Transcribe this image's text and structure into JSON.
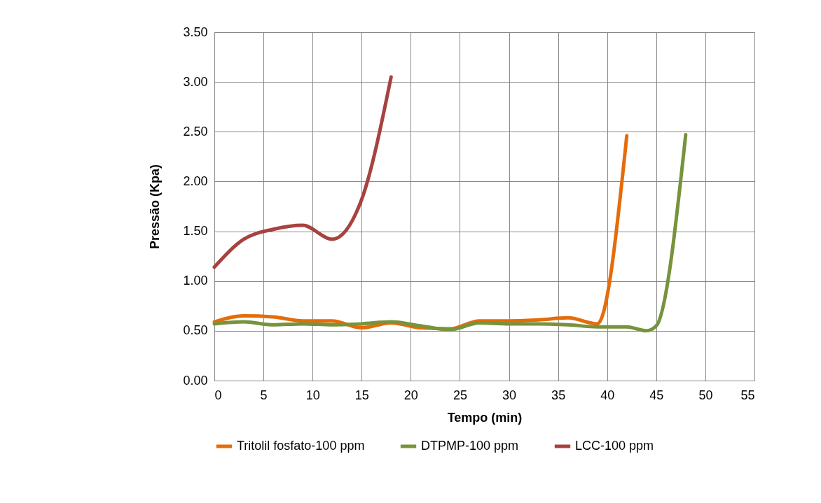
{
  "chart_data": {
    "type": "line",
    "xlabel": "Tempo (min)",
    "ylabel": "Pressão (Kpa)",
    "xlim": [
      0,
      55
    ],
    "xticks": [
      0,
      5,
      10,
      15,
      20,
      25,
      30,
      35,
      40,
      45,
      50,
      55
    ],
    "ylim": [
      0,
      3.5
    ],
    "yticks": [
      {
        "value": 0,
        "label": "0.00"
      },
      {
        "value": 0.5,
        "label": "0.50"
      },
      {
        "value": 1,
        "label": "1.00"
      },
      {
        "value": 1.5,
        "label": "1.50"
      },
      {
        "value": 2,
        "label": "2.00"
      },
      {
        "value": 2.5,
        "label": "2.50"
      },
      {
        "value": 3,
        "label": "3.00"
      },
      {
        "value": 3.5,
        "label": "3.50"
      }
    ],
    "grid": true,
    "legend": "bottom",
    "marker": "none",
    "line_style": "solid",
    "series": [
      {
        "name": "Tritolil fosfato-100 ppm",
        "color": "#e46c0a",
        "x": [
          0,
          3,
          6,
          9,
          12,
          15,
          18,
          21,
          24,
          27,
          30,
          33,
          36,
          39,
          42
        ],
        "values": [
          0.59,
          0.65,
          0.64,
          0.6,
          0.6,
          0.53,
          0.58,
          0.53,
          0.52,
          0.6,
          0.6,
          0.61,
          0.63,
          0.57,
          2.46
        ]
      },
      {
        "name": "DTPMP-100 ppm",
        "color": "#77933c",
        "x": [
          0,
          3,
          6,
          9,
          12,
          15,
          18,
          21,
          24,
          27,
          30,
          33,
          36,
          39,
          42,
          44,
          45,
          48
        ],
        "values": [
          0.57,
          0.59,
          0.56,
          0.57,
          0.56,
          0.57,
          0.59,
          0.55,
          0.51,
          0.58,
          0.57,
          0.57,
          0.56,
          0.54,
          0.54,
          0.5,
          0.55,
          2.47
        ]
      },
      {
        "name": "LCC-100 ppm",
        "color": "#a64340",
        "x": [
          0,
          3,
          6,
          9,
          12,
          15,
          18
        ],
        "values": [
          1.14,
          1.42,
          1.52,
          1.56,
          1.42,
          1.82,
          3.05
        ]
      }
    ]
  }
}
